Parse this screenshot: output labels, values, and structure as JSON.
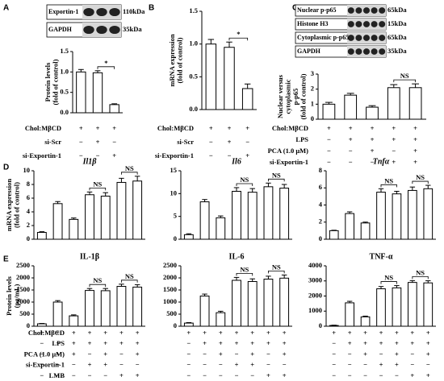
{
  "chart_data": [
    {
      "type": "bar",
      "panel": "A",
      "blot": [
        {
          "name": "Exportin-1",
          "size": "110kDa"
        },
        {
          "name": "GAPDH",
          "size": "35kDa"
        }
      ],
      "ylabel": [
        "Protein levels",
        "(fold of control)"
      ],
      "values": [
        1.0,
        0.98,
        0.2
      ],
      "errors": [
        0.06,
        0.05,
        0.02
      ],
      "ylim": [
        0,
        1.5
      ],
      "yticks": [
        {
          "value": 0,
          "label": "0.0"
        },
        {
          "value": 0.5,
          "label": "0.5"
        },
        {
          "value": 1,
          "label": "1.0"
        },
        {
          "value": 1.5,
          "label": "1.5"
        }
      ],
      "brackets": [
        {
          "bars": [
            1,
            2
          ],
          "text": "*"
        }
      ],
      "conditions": [
        {
          "label": "Chol:MβCD",
          "signs": [
            "+",
            "+",
            "+"
          ]
        },
        {
          "label": "si-Scr",
          "signs": [
            "−",
            "+",
            "−"
          ]
        },
        {
          "label": "si-Exportin-1",
          "signs": [
            "−",
            "−",
            "+"
          ]
        }
      ]
    },
    {
      "type": "bar",
      "panel": "B",
      "ylabel": [
        "mRNA expression",
        "(fold of control)"
      ],
      "values": [
        1.0,
        0.95,
        0.32
      ],
      "errors": [
        0.07,
        0.08,
        0.07
      ],
      "ylim": [
        0,
        1.5
      ],
      "yticks": [
        {
          "value": 0,
          "label": "0.0"
        },
        {
          "value": 0.5,
          "label": "0.5"
        },
        {
          "value": 1,
          "label": "1.0"
        },
        {
          "value": 1.5,
          "label": "1.5"
        }
      ],
      "brackets": [
        {
          "bars": [
            1,
            2
          ],
          "text": "*"
        }
      ],
      "conditions": [
        {
          "label": "Chol:MβCD",
          "signs": [
            "+",
            "+",
            "+"
          ]
        },
        {
          "label": "si-Scr",
          "signs": [
            "−",
            "+",
            "−"
          ]
        },
        {
          "label": "si-Exportin-1",
          "signs": [
            "−",
            "−",
            "+"
          ]
        }
      ]
    },
    {
      "type": "bar",
      "panel": "C",
      "blot": [
        {
          "name": "Nuclear p-p65",
          "size": "65kDa"
        },
        {
          "name": "Histone H3",
          "size": "15kDa"
        },
        {
          "name": "Cytoplasmic p-p65",
          "size": "65kDa"
        },
        {
          "name": "GAPDH",
          "size": "35kDa"
        }
      ],
      "ylabel": [
        "Nuclear versus",
        "cytoplasmic",
        "p-p65",
        "(fold of control)"
      ],
      "values": [
        1.0,
        1.6,
        0.8,
        2.1,
        2.1
      ],
      "errors": [
        0.12,
        0.12,
        0.1,
        0.2,
        0.25
      ],
      "ylim": [
        0,
        3
      ],
      "yticks": [
        0,
        1,
        2,
        3
      ],
      "brackets": [
        {
          "bars": [
            3,
            4
          ],
          "text": "NS"
        }
      ],
      "conditions": [
        {
          "label": "Chol:MβCD",
          "signs": [
            "+",
            "+",
            "+",
            "+",
            "+"
          ]
        },
        {
          "label": "LPS",
          "signs": [
            "−",
            "+",
            "+",
            "+",
            "+"
          ]
        },
        {
          "label": "PCA (1.0 μM)",
          "signs": [
            "−",
            "−",
            "+",
            "−",
            "+"
          ]
        },
        {
          "label": "si-Exportin-1",
          "signs": [
            "−",
            "−",
            "−",
            "+",
            "+"
          ]
        }
      ]
    },
    {
      "type": "bar",
      "panel": "D",
      "title": "Il1β",
      "title_italic": true,
      "ylabel": [
        "mRNA expression",
        "(fold of control)"
      ],
      "values": [
        1.0,
        5.2,
        2.9,
        6.5,
        6.3,
        8.3,
        8.5
      ],
      "errors": [
        0.1,
        0.3,
        0.2,
        0.4,
        0.5,
        0.6,
        0.7
      ],
      "ylim": [
        0,
        10
      ],
      "yticks": [
        0,
        2,
        4,
        6,
        8,
        10
      ],
      "brackets": [
        {
          "bars": [
            3,
            4
          ],
          "text": "NS"
        },
        {
          "bars": [
            5,
            6
          ],
          "text": "NS"
        }
      ]
    },
    {
      "type": "bar",
      "title": "Il6",
      "title_italic": true,
      "values": [
        1.0,
        8.2,
        4.7,
        10.5,
        10.3,
        11.5,
        11.2
      ],
      "errors": [
        0.2,
        0.5,
        0.4,
        0.8,
        0.8,
        0.8,
        0.8
      ],
      "ylim": [
        0,
        15
      ],
      "yticks": [
        0,
        5,
        10,
        15
      ],
      "brackets": [
        {
          "bars": [
            3,
            4
          ],
          "text": "NS"
        },
        {
          "bars": [
            5,
            6
          ],
          "text": "NS"
        }
      ]
    },
    {
      "type": "bar",
      "title": "Tnfα",
      "title_italic": true,
      "values": [
        1.0,
        3.0,
        1.9,
        5.5,
        5.3,
        5.7,
        5.9
      ],
      "errors": [
        0.05,
        0.2,
        0.1,
        0.4,
        0.3,
        0.4,
        0.4
      ],
      "ylim": [
        0,
        8
      ],
      "yticks": [
        0,
        2,
        4,
        6,
        8
      ],
      "brackets": [
        {
          "bars": [
            3,
            4
          ],
          "text": "NS"
        },
        {
          "bars": [
            5,
            6
          ],
          "text": "NS"
        }
      ]
    },
    {
      "type": "bar",
      "panel": "E",
      "title": "IL-1β",
      "ylabel": [
        "Protein levels",
        "(pg/mL)"
      ],
      "values": [
        100,
        1000,
        430,
        1480,
        1470,
        1650,
        1620
      ],
      "errors": [
        15,
        60,
        40,
        80,
        90,
        90,
        100
      ],
      "ylim": [
        0,
        2500
      ],
      "yticks": [
        0,
        500,
        1000,
        1500,
        2000,
        2500
      ],
      "brackets": [
        {
          "bars": [
            3,
            4
          ],
          "text": "NS"
        },
        {
          "bars": [
            5,
            6
          ],
          "text": "NS"
        }
      ],
      "conditions": [
        {
          "label": "Chol:MβCD",
          "signs": [
            "+",
            "+",
            "+",
            "+",
            "+",
            "+",
            "+"
          ]
        },
        {
          "label": "LPS",
          "signs": [
            "−",
            "+",
            "+",
            "+",
            "+",
            "+",
            "+"
          ]
        },
        {
          "label": "PCA (1.0 μM)",
          "signs": [
            "−",
            "−",
            "+",
            "−",
            "+",
            "−",
            "+"
          ]
        },
        {
          "label": "si-Exportin-1",
          "signs": [
            "−",
            "−",
            "−",
            "+",
            "+",
            "−",
            "−"
          ]
        },
        {
          "label": "LMB",
          "signs": [
            "−",
            "−",
            "−",
            "−",
            "−",
            "+",
            "+"
          ]
        }
      ]
    },
    {
      "type": "bar",
      "title": "IL-6",
      "values": [
        130,
        1250,
        560,
        1900,
        1850,
        1950,
        1990
      ],
      "errors": [
        20,
        80,
        60,
        120,
        110,
        120,
        130
      ],
      "ylim": [
        0,
        2500
      ],
      "yticks": [
        0,
        500,
        1000,
        1500,
        2000,
        2500
      ],
      "brackets": [
        {
          "bars": [
            3,
            4
          ],
          "text": "NS"
        },
        {
          "bars": [
            5,
            6
          ],
          "text": "NS"
        }
      ],
      "conditions": [
        {
          "signs": [
            "+",
            "+",
            "+",
            "+",
            "+",
            "+",
            "+"
          ]
        },
        {
          "signs": [
            "−",
            "+",
            "+",
            "+",
            "+",
            "+",
            "+"
          ]
        },
        {
          "signs": [
            "−",
            "−",
            "+",
            "−",
            "+",
            "−",
            "+"
          ]
        },
        {
          "signs": [
            "−",
            "−",
            "−",
            "+",
            "+",
            "−",
            "−"
          ]
        },
        {
          "signs": [
            "−",
            "−",
            "−",
            "−",
            "−",
            "+",
            "+"
          ]
        }
      ]
    },
    {
      "type": "bar",
      "title": "TNF-α",
      "title_italic_greek": true,
      "values": [
        50,
        1550,
        620,
        2480,
        2540,
        2900,
        2870
      ],
      "errors": [
        20,
        100,
        50,
        150,
        150,
        120,
        140
      ],
      "ylim": [
        0,
        4000
      ],
      "yticks": [
        0,
        1000,
        2000,
        3000,
        4000
      ],
      "brackets": [
        {
          "bars": [
            3,
            4
          ],
          "text": "NS"
        },
        {
          "bars": [
            5,
            6
          ],
          "text": "NS"
        }
      ],
      "conditions": [
        {
          "signs": [
            "+",
            "+",
            "+",
            "+",
            "+",
            "+",
            "+"
          ]
        },
        {
          "signs": [
            "−",
            "+",
            "+",
            "+",
            "+",
            "+",
            "+"
          ]
        },
        {
          "signs": [
            "−",
            "−",
            "+",
            "−",
            "+",
            "−",
            "+"
          ]
        },
        {
          "signs": [
            "−",
            "−",
            "−",
            "+",
            "+",
            "−",
            "−"
          ]
        },
        {
          "signs": [
            "−",
            "−",
            "−",
            "−",
            "−",
            "+",
            "+"
          ]
        }
      ]
    }
  ]
}
